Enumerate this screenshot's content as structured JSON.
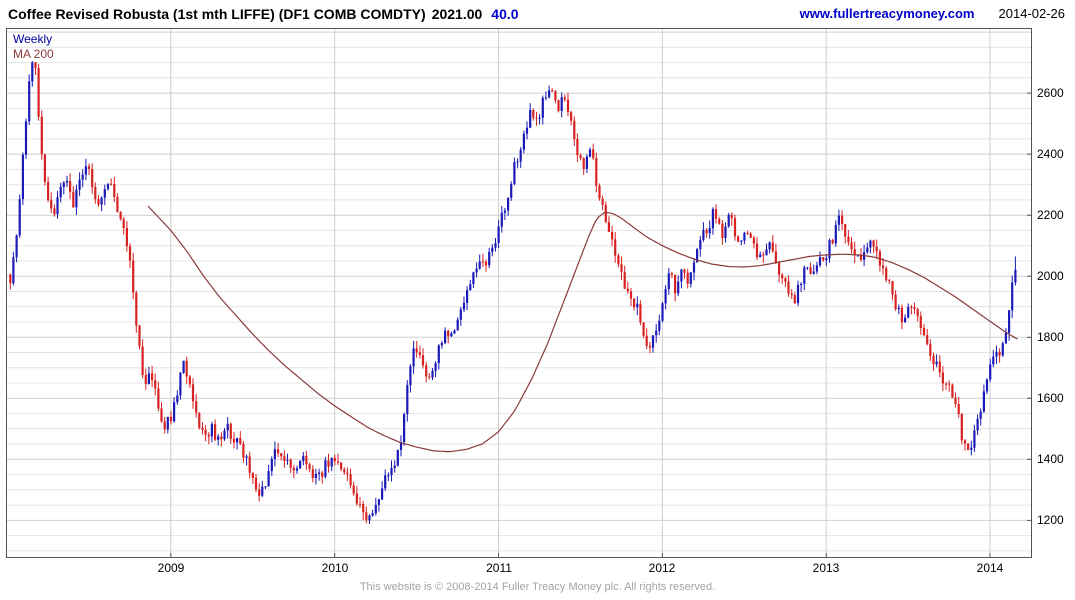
{
  "header": {
    "title": "Coffee Revised Robusta (1st mth LIFFE) (DF1 COMB COMDTY)",
    "last_price": "2021.00",
    "change": "40.0",
    "site_link": "www.fullertreacymoney.com",
    "date": "2014-02-26"
  },
  "legend": {
    "timeframe_label": "Weekly",
    "ma_label": "MA 200"
  },
  "footer": {
    "text": "This website is © 2008-2014 Fuller Treacy Money plc. All rights reserved."
  },
  "chart_data": {
    "type": "candlestick",
    "title": "Coffee Revised Robusta (1st mth LIFFE) (DF1 COMB COMDTY)",
    "timeframe": "Weekly",
    "overlay": "200-week moving average",
    "x_unit": "decimal year",
    "x_range": [
      2008.0,
      2014.25
    ],
    "y_range": [
      1080,
      2810
    ],
    "y_ticks": [
      1200,
      1400,
      1600,
      1800,
      2000,
      2200,
      2400,
      2600
    ],
    "x_ticks": [
      2009,
      2010,
      2011,
      2012,
      2013,
      2014
    ],
    "grid_minor_step": 50,
    "grid": true,
    "last_close": 2021.0,
    "change": 40.0,
    "colors": {
      "up": "#1a1ab8",
      "down": "#d82222",
      "ma": "#8b3a3a",
      "grid_minor": "#e4e4e4",
      "grid_major": "#cfcfcf",
      "frame": "#555555"
    },
    "close_anchors": [
      [
        2008.02,
        1990
      ],
      [
        2008.06,
        2120
      ],
      [
        2008.1,
        2400
      ],
      [
        2008.14,
        2650
      ],
      [
        2008.17,
        2720
      ],
      [
        2008.2,
        2480
      ],
      [
        2008.24,
        2280
      ],
      [
        2008.28,
        2200
      ],
      [
        2008.32,
        2280
      ],
      [
        2008.36,
        2320
      ],
      [
        2008.4,
        2240
      ],
      [
        2008.44,
        2300
      ],
      [
        2008.48,
        2380
      ],
      [
        2008.52,
        2300
      ],
      [
        2008.56,
        2240
      ],
      [
        2008.6,
        2280
      ],
      [
        2008.64,
        2300
      ],
      [
        2008.68,
        2220
      ],
      [
        2008.72,
        2160
      ],
      [
        2008.76,
        2000
      ],
      [
        2008.8,
        1780
      ],
      [
        2008.84,
        1640
      ],
      [
        2008.88,
        1700
      ],
      [
        2008.92,
        1560
      ],
      [
        2008.96,
        1500
      ],
      [
        2009.0,
        1540
      ],
      [
        2009.04,
        1620
      ],
      [
        2009.08,
        1720
      ],
      [
        2009.12,
        1640
      ],
      [
        2009.16,
        1540
      ],
      [
        2009.2,
        1480
      ],
      [
        2009.25,
        1500
      ],
      [
        2009.3,
        1460
      ],
      [
        2009.35,
        1500
      ],
      [
        2009.4,
        1460
      ],
      [
        2009.45,
        1420
      ],
      [
        2009.5,
        1330
      ],
      [
        2009.54,
        1270
      ],
      [
        2009.58,
        1320
      ],
      [
        2009.62,
        1400
      ],
      [
        2009.66,
        1430
      ],
      [
        2009.7,
        1400
      ],
      [
        2009.75,
        1370
      ],
      [
        2009.8,
        1410
      ],
      [
        2009.85,
        1360
      ],
      [
        2009.9,
        1330
      ],
      [
        2009.95,
        1390
      ],
      [
        2010.0,
        1410
      ],
      [
        2010.05,
        1360
      ],
      [
        2010.1,
        1310
      ],
      [
        2010.15,
        1260
      ],
      [
        2010.2,
        1200
      ],
      [
        2010.24,
        1230
      ],
      [
        2010.28,
        1290
      ],
      [
        2010.32,
        1340
      ],
      [
        2010.36,
        1390
      ],
      [
        2010.4,
        1450
      ],
      [
        2010.44,
        1620
      ],
      [
        2010.48,
        1780
      ],
      [
        2010.52,
        1720
      ],
      [
        2010.56,
        1660
      ],
      [
        2010.6,
        1700
      ],
      [
        2010.64,
        1760
      ],
      [
        2010.68,
        1810
      ],
      [
        2010.72,
        1790
      ],
      [
        2010.76,
        1860
      ],
      [
        2010.8,
        1950
      ],
      [
        2010.84,
        2000
      ],
      [
        2010.88,
        2060
      ],
      [
        2010.92,
        2030
      ],
      [
        2010.96,
        2090
      ],
      [
        2011.0,
        2150
      ],
      [
        2011.04,
        2230
      ],
      [
        2011.08,
        2320
      ],
      [
        2011.12,
        2400
      ],
      [
        2011.16,
        2480
      ],
      [
        2011.2,
        2560
      ],
      [
        2011.24,
        2480
      ],
      [
        2011.28,
        2590
      ],
      [
        2011.32,
        2620
      ],
      [
        2011.36,
        2540
      ],
      [
        2011.4,
        2600
      ],
      [
        2011.44,
        2500
      ],
      [
        2011.48,
        2420
      ],
      [
        2011.52,
        2330
      ],
      [
        2011.56,
        2420
      ],
      [
        2011.6,
        2300
      ],
      [
        2011.64,
        2230
      ],
      [
        2011.68,
        2130
      ],
      [
        2011.72,
        2050
      ],
      [
        2011.76,
        1980
      ],
      [
        2011.8,
        1950
      ],
      [
        2011.84,
        1900
      ],
      [
        2011.88,
        1830
      ],
      [
        2011.92,
        1770
      ],
      [
        2011.96,
        1820
      ],
      [
        2012.0,
        1920
      ],
      [
        2012.04,
        2010
      ],
      [
        2012.08,
        1960
      ],
      [
        2012.12,
        2040
      ],
      [
        2012.16,
        1990
      ],
      [
        2012.2,
        2060
      ],
      [
        2012.24,
        2120
      ],
      [
        2012.28,
        2160
      ],
      [
        2012.32,
        2220
      ],
      [
        2012.36,
        2130
      ],
      [
        2012.4,
        2210
      ],
      [
        2012.44,
        2150
      ],
      [
        2012.48,
        2100
      ],
      [
        2012.52,
        2160
      ],
      [
        2012.56,
        2100
      ],
      [
        2012.6,
        2050
      ],
      [
        2012.64,
        2110
      ],
      [
        2012.68,
        2060
      ],
      [
        2012.72,
        2010
      ],
      [
        2012.76,
        1960
      ],
      [
        2012.8,
        1920
      ],
      [
        2012.84,
        1980
      ],
      [
        2012.88,
        2040
      ],
      [
        2012.92,
        2000
      ],
      [
        2012.96,
        2050
      ],
      [
        2013.0,
        2070
      ],
      [
        2013.04,
        2130
      ],
      [
        2013.08,
        2190
      ],
      [
        2013.12,
        2140
      ],
      [
        2013.16,
        2090
      ],
      [
        2013.2,
        2050
      ],
      [
        2013.24,
        2100
      ],
      [
        2013.28,
        2130
      ],
      [
        2013.32,
        2060
      ],
      [
        2013.36,
        2010
      ],
      [
        2013.4,
        1950
      ],
      [
        2013.44,
        1890
      ],
      [
        2013.48,
        1850
      ],
      [
        2013.52,
        1910
      ],
      [
        2013.56,
        1860
      ],
      [
        2013.6,
        1790
      ],
      [
        2013.64,
        1740
      ],
      [
        2013.68,
        1700
      ],
      [
        2013.72,
        1660
      ],
      [
        2013.76,
        1620
      ],
      [
        2013.8,
        1560
      ],
      [
        2013.84,
        1440
      ],
      [
        2013.88,
        1420
      ],
      [
        2013.92,
        1520
      ],
      [
        2013.96,
        1620
      ],
      [
        2014.0,
        1700
      ],
      [
        2014.04,
        1740
      ],
      [
        2014.08,
        1780
      ],
      [
        2014.12,
        1900
      ],
      [
        2014.15,
        2021
      ]
    ],
    "ma200_anchors": [
      [
        2008.86,
        2230
      ],
      [
        2009.0,
        2150
      ],
      [
        2009.1,
        2080
      ],
      [
        2009.2,
        2000
      ],
      [
        2009.3,
        1930
      ],
      [
        2009.4,
        1870
      ],
      [
        2009.5,
        1810
      ],
      [
        2009.6,
        1755
      ],
      [
        2009.7,
        1705
      ],
      [
        2009.8,
        1660
      ],
      [
        2009.9,
        1615
      ],
      [
        2010.0,
        1575
      ],
      [
        2010.1,
        1540
      ],
      [
        2010.2,
        1505
      ],
      [
        2010.3,
        1478
      ],
      [
        2010.4,
        1455
      ],
      [
        2010.5,
        1440
      ],
      [
        2010.6,
        1428
      ],
      [
        2010.7,
        1425
      ],
      [
        2010.8,
        1432
      ],
      [
        2010.9,
        1450
      ],
      [
        2011.0,
        1490
      ],
      [
        2011.1,
        1560
      ],
      [
        2011.2,
        1660
      ],
      [
        2011.3,
        1780
      ],
      [
        2011.4,
        1920
      ],
      [
        2011.5,
        2060
      ],
      [
        2011.55,
        2130
      ],
      [
        2011.6,
        2190
      ],
      [
        2011.65,
        2210
      ],
      [
        2011.7,
        2205
      ],
      [
        2011.75,
        2190
      ],
      [
        2011.8,
        2170
      ],
      [
        2011.9,
        2130
      ],
      [
        2012.0,
        2100
      ],
      [
        2012.1,
        2075
      ],
      [
        2012.2,
        2055
      ],
      [
        2012.3,
        2040
      ],
      [
        2012.4,
        2032
      ],
      [
        2012.5,
        2030
      ],
      [
        2012.6,
        2035
      ],
      [
        2012.7,
        2045
      ],
      [
        2012.8,
        2055
      ],
      [
        2012.9,
        2065
      ],
      [
        2013.0,
        2070
      ],
      [
        2013.1,
        2072
      ],
      [
        2013.2,
        2070
      ],
      [
        2013.3,
        2062
      ],
      [
        2013.4,
        2045
      ],
      [
        2013.5,
        2022
      ],
      [
        2013.6,
        1995
      ],
      [
        2013.7,
        1962
      ],
      [
        2013.8,
        1928
      ],
      [
        2013.9,
        1890
      ],
      [
        2014.0,
        1852
      ],
      [
        2014.1,
        1815
      ],
      [
        2014.18,
        1790
      ]
    ]
  }
}
